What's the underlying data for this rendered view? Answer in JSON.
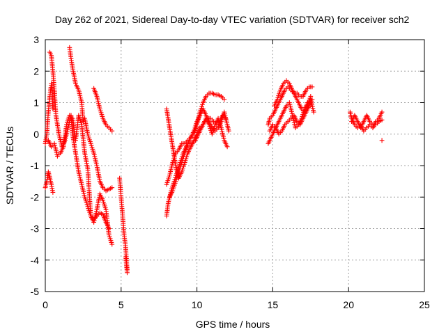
{
  "chart_data": {
    "type": "scatter",
    "title": "Day 262 of 2021, Sidereal Day-to-day VTEC variation (SDTVAR) for receiver sch2",
    "xlabel": "GPS time / hours",
    "ylabel": "SDTVAR / TECUs",
    "xlim": [
      0,
      25
    ],
    "ylim": [
      -5,
      3
    ],
    "x_ticks": [
      0,
      5,
      10,
      15,
      20,
      25
    ],
    "x_tick_labels": [
      "0",
      "5",
      "10",
      "15",
      "20",
      "25"
    ],
    "y_ticks": [
      -5,
      -4,
      -3,
      -2,
      -1,
      0,
      1,
      2,
      3
    ],
    "y_tick_labels": [
      "-5",
      "-4",
      "-3",
      "-2",
      "-1",
      "0",
      "1",
      "2",
      "3"
    ],
    "grid": true,
    "marker": "+",
    "series": [
      {
        "name": "sch2",
        "color": "#ff0000",
        "tracks": [
          {
            "x": [
              0.0,
              0.1,
              0.2,
              0.3,
              0.4,
              0.5
            ],
            "y": [
              -1.7,
              -1.5,
              -1.2,
              -1.4,
              -1.6,
              -1.85
            ]
          },
          {
            "x": [
              0.0,
              0.1,
              0.2,
              0.3,
              0.4,
              0.5
            ],
            "y": [
              -0.3,
              0.0,
              0.7,
              1.2,
              1.6,
              0.8
            ]
          },
          {
            "x": [
              0.3,
              0.4,
              0.5,
              0.6,
              0.7,
              0.9,
              1.1,
              1.3,
              1.5,
              1.7,
              1.8,
              2.0,
              2.2,
              2.4,
              2.6,
              2.8,
              3.0,
              3.2,
              3.4,
              3.6,
              3.8,
              4.0,
              4.2
            ],
            "y": [
              2.6,
              2.5,
              2.0,
              1.4,
              0.6,
              0.0,
              -0.4,
              -0.2,
              0.2,
              0.6,
              0.0,
              -0.6,
              -1.2,
              -1.6,
              -2.0,
              -2.3,
              -2.6,
              -2.7,
              -2.6,
              -2.5,
              -2.55,
              -2.8,
              -3.0
            ]
          },
          {
            "x": [
              0.2,
              0.4,
              0.6,
              0.8,
              1.0,
              1.2,
              1.4,
              1.6,
              1.8,
              2.0,
              2.2,
              2.4,
              2.6,
              2.8,
              3.0,
              3.2,
              3.4,
              3.6,
              3.8,
              4.0,
              4.2,
              4.4
            ],
            "y": [
              -0.2,
              -0.4,
              -0.3,
              -0.7,
              -0.6,
              -0.4,
              0.3,
              0.6,
              0.5,
              -0.2,
              0.6,
              0.3,
              -0.6,
              -1.1,
              -2.6,
              -2.8,
              -2.4,
              -1.9,
              -2.1,
              -2.4,
              -3.2,
              -3.5
            ]
          },
          {
            "x": [
              1.6,
              1.7,
              1.8,
              2.0,
              2.2,
              2.4,
              2.5,
              2.6,
              2.8,
              3.0,
              3.2,
              3.4,
              3.6,
              3.8,
              4.0,
              4.2,
              4.4
            ],
            "y": [
              2.75,
              2.4,
              2.1,
              1.6,
              1.4,
              1.0,
              0.4,
              0.5,
              0.0,
              -0.3,
              -0.6,
              -1.0,
              -1.5,
              -1.7,
              -1.8,
              -1.75,
              -1.7
            ]
          },
          {
            "x": [
              3.2,
              3.4,
              3.6,
              3.8,
              4.0,
              4.2,
              4.4
            ],
            "y": [
              1.45,
              1.2,
              0.8,
              0.5,
              0.3,
              0.2,
              0.1
            ]
          },
          {
            "x": [
              4.9,
              5.0,
              5.1,
              5.2,
              5.3,
              5.4
            ],
            "y": [
              -1.4,
              -2.0,
              -2.6,
              -3.2,
              -3.6,
              -4.3
            ]
          },
          {
            "x": [
              5.3,
              5.4
            ],
            "y": [
              -3.9,
              -4.4
            ]
          },
          {
            "x": [
              8.0,
              8.1,
              8.3,
              8.5,
              8.7,
              8.9,
              9.1,
              9.3,
              9.5,
              9.7,
              9.9,
              10.1,
              10.3,
              10.5,
              10.7,
              10.9,
              11.1,
              11.3,
              11.5,
              11.7,
              11.9
            ],
            "y": [
              -2.6,
              -2.2,
              -1.8,
              -1.5,
              -1.2,
              -0.9,
              -0.6,
              -0.4,
              -0.3,
              -0.3,
              -0.2,
              0.0,
              0.2,
              0.4,
              0.5,
              0.5,
              0.4,
              0.3,
              0.4,
              0.6,
              0.5
            ]
          },
          {
            "x": [
              8.0,
              8.2,
              8.4,
              8.6,
              8.8,
              9.0,
              9.2,
              9.4,
              9.6,
              9.8,
              10.0,
              10.2,
              10.4,
              10.6,
              10.8,
              11.0,
              11.2,
              11.4,
              11.6,
              11.8
            ],
            "y": [
              -1.6,
              -1.3,
              -0.9,
              -0.6,
              -0.5,
              -0.3,
              -0.3,
              -0.2,
              -0.1,
              0.0,
              0.3,
              0.7,
              1.0,
              1.2,
              1.3,
              1.3,
              1.25,
              1.25,
              1.2,
              1.1
            ]
          },
          {
            "x": [
              8.0,
              8.2,
              8.4,
              8.6,
              8.8,
              9.0,
              9.2,
              9.4,
              9.6,
              9.8,
              10.0,
              10.2,
              10.4,
              10.6,
              10.8,
              11.0,
              11.2,
              11.4,
              11.6,
              11.8,
              12.0
            ],
            "y": [
              0.8,
              0.2,
              -0.4,
              -1.0,
              -1.4,
              -1.2,
              -0.9,
              -0.6,
              -0.4,
              -0.2,
              0.0,
              0.2,
              0.3,
              0.5,
              0.3,
              0.0,
              0.3,
              0.5,
              0.2,
              -0.2,
              -0.4
            ]
          },
          {
            "x": [
              8.2,
              8.4,
              8.6,
              8.8,
              9.0,
              9.2,
              9.4,
              9.6,
              9.8,
              10.0,
              10.2,
              10.4,
              10.6,
              10.8,
              11.0,
              11.2,
              11.4,
              11.6,
              11.8,
              12.0,
              12.1
            ],
            "y": [
              -2.0,
              -1.8,
              -1.5,
              -1.2,
              -0.9,
              -0.6,
              -0.3,
              -0.1,
              0.1,
              0.4,
              0.6,
              0.8,
              0.6,
              0.4,
              0.2,
              0.1,
              0.2,
              0.4,
              0.7,
              0.3,
              0.1
            ]
          },
          {
            "x": [
              14.7,
              14.8,
              15.0,
              15.2,
              15.4,
              15.6,
              15.8,
              16.0,
              16.2,
              16.4,
              16.6,
              16.8,
              17.0,
              17.2,
              17.4,
              17.6
            ],
            "y": [
              0.3,
              0.5,
              0.6,
              0.8,
              1.0,
              1.2,
              1.4,
              1.5,
              1.4,
              1.3,
              1.3,
              1.2,
              1.2,
              1.4,
              1.5,
              1.5
            ]
          },
          {
            "x": [
              14.7,
              14.9,
              15.1,
              15.3,
              15.5,
              15.7,
              15.9,
              16.1,
              16.3,
              16.5,
              16.7,
              16.9,
              17.1,
              17.3,
              17.5,
              17.7
            ],
            "y": [
              -0.3,
              -0.1,
              0.1,
              0.3,
              0.5,
              0.7,
              0.9,
              1.0,
              0.6,
              0.2,
              0.3,
              0.5,
              0.8,
              1.0,
              1.1,
              0.7
            ]
          },
          {
            "x": [
              14.8,
              15.0,
              15.2,
              15.4,
              15.6,
              15.8,
              16.0,
              16.2,
              16.4,
              16.6,
              16.8,
              17.0,
              17.2,
              17.4,
              17.6
            ],
            "y": [
              0.1,
              0.3,
              0.2,
              0.0,
              0.1,
              0.3,
              0.4,
              0.5,
              0.6,
              0.4,
              0.3,
              0.5,
              0.7,
              0.9,
              1.1
            ]
          },
          {
            "x": [
              15.1,
              15.3,
              15.5,
              15.7,
              15.9,
              16.1,
              16.3,
              16.5,
              16.7,
              16.9,
              17.1,
              17.3,
              17.5
            ],
            "y": [
              0.9,
              1.1,
              1.4,
              1.6,
              1.7,
              1.6,
              1.4,
              1.2,
              1.0,
              0.8,
              0.7,
              0.9,
              1.2
            ]
          },
          {
            "x": [
              20.1,
              20.2,
              20.4,
              20.6,
              20.8,
              21.0,
              21.2,
              21.4,
              21.6,
              21.8,
              22.0,
              22.2
            ],
            "y": [
              0.7,
              0.5,
              0.3,
              0.2,
              0.3,
              0.1,
              0.2,
              0.3,
              0.2,
              0.4,
              0.5,
              0.7
            ]
          },
          {
            "x": [
              20.2,
              20.4,
              20.6,
              20.8,
              21.0,
              21.2,
              21.4,
              21.6,
              21.8,
              22.0,
              22.2
            ],
            "y": [
              0.4,
              0.6,
              0.4,
              0.2,
              0.4,
              0.6,
              0.4,
              0.3,
              0.3,
              0.4,
              0.45
            ]
          },
          {
            "x": [
              22.2
            ],
            "y": [
              -0.2
            ]
          }
        ]
      }
    ]
  }
}
